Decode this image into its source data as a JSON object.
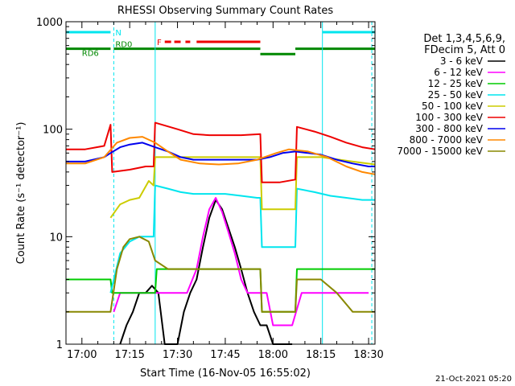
{
  "chart_data": {
    "type": "line",
    "title": "RHESSI Observing Summary Count Rates",
    "xlabel": "Start Time (16-Nov-05 16:55:02)",
    "ylabel": "Count Rate (s⁻¹ detector⁻¹)",
    "yscale": "log",
    "ylim": [
      1,
      1000
    ],
    "xlim_minutes": [
      0,
      97
    ],
    "x_ticks": [
      {
        "label": "17:00",
        "minute": 5
      },
      {
        "label": "17:15",
        "minute": 20
      },
      {
        "label": "17:30",
        "minute": 35
      },
      {
        "label": "17:45",
        "minute": 50
      },
      {
        "label": "18:00",
        "minute": 65
      },
      {
        "label": "18:15",
        "minute": 80
      },
      {
        "label": "18:30",
        "minute": 95
      }
    ],
    "y_ticks": [
      {
        "label": "1",
        "value": 1
      },
      {
        "label": "10",
        "value": 10
      },
      {
        "label": "100",
        "value": 100
      },
      {
        "label": "1000",
        "value": 1000
      }
    ],
    "legend_header": [
      "Det 1,3,4,5,6,9,",
      "FDecim 5, Att 0"
    ],
    "legend_position": "right",
    "series": [
      {
        "name": "3 - 6 keV",
        "color": "#000000",
        "points": [
          [
            17,
            1
          ],
          [
            19,
            1.5
          ],
          [
            21,
            2
          ],
          [
            23,
            3
          ],
          [
            25,
            3
          ],
          [
            27,
            3.5
          ],
          [
            29,
            3
          ],
          [
            31,
            1
          ],
          [
            35,
            1
          ],
          [
            37,
            2
          ],
          [
            39,
            3
          ],
          [
            41,
            4
          ],
          [
            43,
            8
          ],
          [
            45,
            15
          ],
          [
            47,
            22
          ],
          [
            49,
            18
          ],
          [
            51,
            12
          ],
          [
            53,
            8
          ],
          [
            55,
            5
          ],
          [
            57,
            3
          ],
          [
            59,
            2
          ],
          [
            61,
            1.5
          ],
          [
            63,
            1.5
          ],
          [
            65,
            1
          ],
          [
            67,
            1
          ],
          [
            69,
            1
          ],
          [
            71,
            1
          ]
        ]
      },
      {
        "name": "6 - 12 keV",
        "color": "#ff00ff",
        "points": [
          [
            15,
            2
          ],
          [
            17,
            3
          ],
          [
            20,
            3
          ],
          [
            23,
            3
          ],
          [
            26,
            3
          ],
          [
            29,
            3
          ],
          [
            32,
            3
          ],
          [
            35,
            3
          ],
          [
            38,
            3
          ],
          [
            41,
            5
          ],
          [
            43,
            10
          ],
          [
            45,
            18
          ],
          [
            47,
            23
          ],
          [
            49,
            17
          ],
          [
            51,
            11
          ],
          [
            53,
            7
          ],
          [
            55,
            4
          ],
          [
            57,
            3
          ],
          [
            59,
            3
          ],
          [
            61,
            3
          ],
          [
            63,
            3
          ],
          [
            65,
            1.5
          ],
          [
            68,
            1.5
          ],
          [
            71,
            1.5
          ],
          [
            74,
            3
          ],
          [
            77,
            3
          ],
          [
            80,
            3
          ],
          [
            83,
            3
          ],
          [
            86,
            3
          ],
          [
            89,
            3
          ],
          [
            92,
            3
          ],
          [
            95,
            3
          ]
        ]
      },
      {
        "name": "12 - 25 keV",
        "color": "#00cc00",
        "points": [
          [
            0,
            4
          ],
          [
            5,
            4
          ],
          [
            10,
            4
          ],
          [
            14,
            4
          ],
          [
            14.5,
            3
          ],
          [
            20,
            3
          ],
          [
            25,
            3
          ],
          [
            28,
            3
          ],
          [
            28.5,
            5
          ],
          [
            35,
            5
          ],
          [
            40,
            5
          ],
          [
            45,
            5
          ],
          [
            50,
            5
          ],
          [
            55,
            5
          ],
          [
            60,
            5
          ],
          [
            61,
            5
          ],
          [
            61.5,
            2
          ],
          [
            65,
            2
          ],
          [
            70,
            2
          ],
          [
            72,
            2
          ],
          [
            72.5,
            5
          ],
          [
            80,
            5
          ],
          [
            85,
            5
          ],
          [
            90,
            5
          ],
          [
            95,
            5
          ],
          [
            97,
            5
          ]
        ]
      },
      {
        "name": "25 - 50 keV",
        "color": "#00e5ee",
        "points": [
          [
            14,
            3
          ],
          [
            17,
            7
          ],
          [
            20,
            9
          ],
          [
            23,
            10
          ],
          [
            26,
            10
          ],
          [
            27.5,
            10
          ],
          [
            28,
            30
          ],
          [
            32,
            28
          ],
          [
            36,
            26
          ],
          [
            40,
            25
          ],
          [
            45,
            25
          ],
          [
            50,
            25
          ],
          [
            55,
            24
          ],
          [
            60,
            23
          ],
          [
            61,
            23
          ],
          [
            61.5,
            8
          ],
          [
            65,
            8
          ],
          [
            68,
            8
          ],
          [
            72,
            8
          ],
          [
            72.5,
            28
          ],
          [
            78,
            26
          ],
          [
            83,
            24
          ],
          [
            88,
            23
          ],
          [
            93,
            22
          ],
          [
            97,
            22
          ]
        ]
      },
      {
        "name": "50 - 100 keV",
        "color": "#cccc00",
        "points": [
          [
            14,
            15
          ],
          [
            17,
            20
          ],
          [
            20,
            22
          ],
          [
            23,
            23
          ],
          [
            26,
            33
          ],
          [
            27.5,
            30
          ],
          [
            28,
            55
          ],
          [
            35,
            55
          ],
          [
            45,
            55
          ],
          [
            55,
            55
          ],
          [
            61,
            55
          ],
          [
            61.5,
            18
          ],
          [
            72,
            18
          ],
          [
            72.5,
            55
          ],
          [
            80,
            55
          ],
          [
            90,
            50
          ],
          [
            97,
            47
          ]
        ]
      },
      {
        "name": "100 - 300 keV",
        "color": "#ee0000",
        "points": [
          [
            0,
            65
          ],
          [
            6,
            65
          ],
          [
            12,
            70
          ],
          [
            14,
            110
          ],
          [
            14.5,
            40
          ],
          [
            20,
            42
          ],
          [
            25,
            45
          ],
          [
            27.5,
            45
          ],
          [
            28,
            115
          ],
          [
            35,
            100
          ],
          [
            40,
            90
          ],
          [
            45,
            88
          ],
          [
            50,
            88
          ],
          [
            55,
            88
          ],
          [
            61,
            90
          ],
          [
            61.5,
            32
          ],
          [
            67,
            32
          ],
          [
            72,
            34
          ],
          [
            72.5,
            105
          ],
          [
            78,
            95
          ],
          [
            83,
            85
          ],
          [
            88,
            75
          ],
          [
            93,
            68
          ],
          [
            97,
            65
          ]
        ]
      },
      {
        "name": "300 - 800 keV",
        "color": "#0000ee",
        "points": [
          [
            0,
            50
          ],
          [
            6,
            50
          ],
          [
            12,
            55
          ],
          [
            14,
            60
          ],
          [
            17,
            68
          ],
          [
            20,
            72
          ],
          [
            24,
            75
          ],
          [
            28,
            68
          ],
          [
            32,
            62
          ],
          [
            36,
            55
          ],
          [
            40,
            52
          ],
          [
            45,
            52
          ],
          [
            50,
            52
          ],
          [
            55,
            52
          ],
          [
            60,
            52
          ],
          [
            64,
            55
          ],
          [
            68,
            60
          ],
          [
            72,
            62
          ],
          [
            76,
            60
          ],
          [
            80,
            58
          ],
          [
            85,
            52
          ],
          [
            90,
            48
          ],
          [
            95,
            45
          ],
          [
            97,
            45
          ]
        ]
      },
      {
        "name": "800 - 7000 keV",
        "color": "#ff8800",
        "points": [
          [
            0,
            48
          ],
          [
            6,
            48
          ],
          [
            12,
            55
          ],
          [
            16,
            75
          ],
          [
            20,
            83
          ],
          [
            24,
            85
          ],
          [
            28,
            75
          ],
          [
            32,
            62
          ],
          [
            36,
            52
          ],
          [
            42,
            48
          ],
          [
            48,
            47
          ],
          [
            54,
            48
          ],
          [
            60,
            52
          ],
          [
            66,
            60
          ],
          [
            70,
            65
          ],
          [
            76,
            62
          ],
          [
            82,
            55
          ],
          [
            88,
            45
          ],
          [
            93,
            40
          ],
          [
            97,
            38
          ]
        ]
      },
      {
        "name": "7000 - 15000 keV",
        "color": "#888800",
        "points": [
          [
            0,
            2
          ],
          [
            5,
            2
          ],
          [
            10,
            2
          ],
          [
            14,
            2
          ],
          [
            16,
            5
          ],
          [
            18,
            8
          ],
          [
            20,
            9.5
          ],
          [
            23,
            10
          ],
          [
            26,
            9
          ],
          [
            28,
            6
          ],
          [
            32,
            5
          ],
          [
            40,
            5
          ],
          [
            50,
            5
          ],
          [
            60,
            5
          ],
          [
            61,
            5
          ],
          [
            61.5,
            2
          ],
          [
            72,
            2
          ],
          [
            72.5,
            4
          ],
          [
            80,
            4
          ],
          [
            85,
            3
          ],
          [
            90,
            2
          ],
          [
            97,
            2
          ]
        ]
      }
    ],
    "annotations": {
      "bars": [
        {
          "label": "N",
          "color": "#00e5ee",
          "value": 800,
          "ranges": [
            [
              0,
              14
            ],
            [
              80.5,
              97
            ]
          ]
        },
        {
          "label": "F",
          "color": "#ee0000",
          "value": 650,
          "ranges": [
            [
              31,
              33
            ],
            [
              34,
              36
            ],
            [
              37.5,
              39
            ],
            [
              41,
              61
            ]
          ]
        },
        {
          "label": "RD0",
          "color": "#008800",
          "value": 560,
          "ranges": [
            [
              15,
              28
            ]
          ]
        },
        {
          "label": "RD6",
          "color": "#008800",
          "value": 560,
          "ranges": [
            [
              0,
              14
            ],
            [
              28,
              61
            ],
            [
              72,
              97
            ]
          ]
        },
        {
          "label": "",
          "color": "#008800",
          "value": 500,
          "ranges": [
            [
              61,
              72
            ]
          ]
        }
      ],
      "vlines_solid": [
        {
          "minute": 28,
          "color": "#00e5ee"
        },
        {
          "minute": 80.5,
          "color": "#00e5ee"
        }
      ],
      "vlines_dashed": [
        {
          "minute": 15,
          "color": "#00e5ee"
        },
        {
          "minute": 96,
          "color": "#00e5ee"
        }
      ]
    }
  },
  "footer": {
    "timestamp": "21-Oct-2021 05:20"
  }
}
